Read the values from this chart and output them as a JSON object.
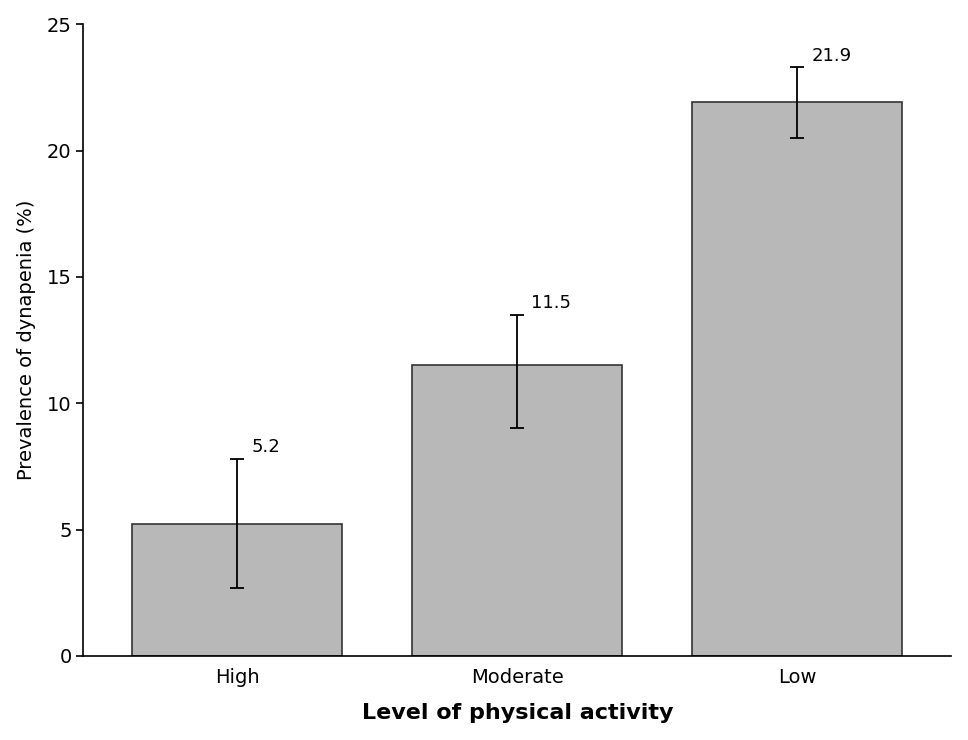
{
  "categories": [
    "High",
    "Moderate",
    "Low"
  ],
  "values": [
    5.2,
    11.5,
    21.9
  ],
  "error_upper": [
    2.6,
    2.0,
    1.4
  ],
  "error_lower": [
    2.5,
    2.5,
    1.4
  ],
  "bar_color": "#b8b8b8",
  "bar_edgecolor": "#333333",
  "labels": [
    "5.2",
    "11.5",
    "21.9"
  ],
  "ylabel": "Prevalence of dynapenia (%)",
  "xlabel": "Level of physical activity",
  "ylim": [
    0,
    25
  ],
  "yticks": [
    0,
    5,
    10,
    15,
    20,
    25
  ],
  "title": "",
  "tick_fontsize": 14,
  "xlabel_fontsize": 16,
  "ylabel_fontsize": 14,
  "annotation_fontsize": 13,
  "bar_width": 0.75,
  "background_color": "#ffffff"
}
